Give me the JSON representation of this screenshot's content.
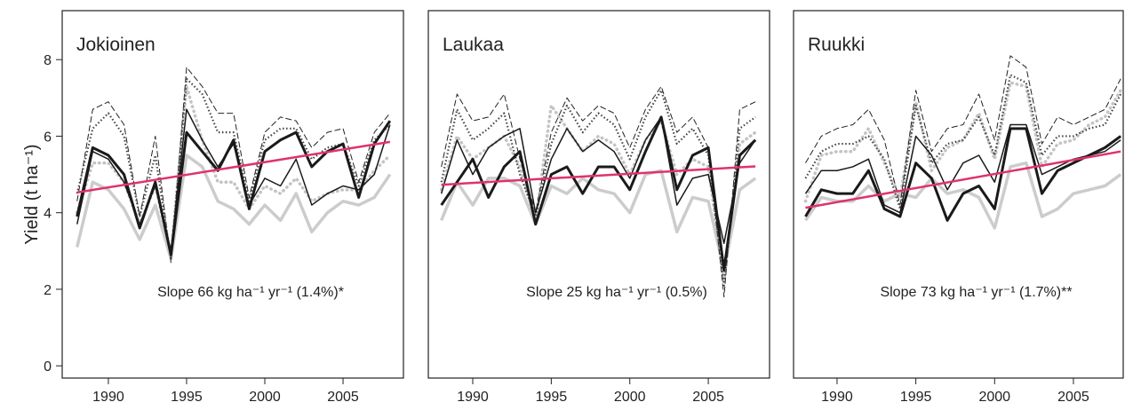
{
  "chart_data": [
    {
      "type": "line",
      "title": "Jokioinen",
      "ylabel": "Yield (t ha⁻¹)",
      "annotation": "Slope 66 kg ha⁻¹ yr⁻¹ (1.4%)*",
      "xlim": [
        1987.05,
        2008.86
      ],
      "ylim": [
        -0.32,
        9.28
      ],
      "xticks": [
        1990,
        1995,
        2000,
        2005
      ],
      "yticks": [
        0,
        2,
        4,
        6,
        8
      ],
      "x": [
        1988,
        1989,
        1990,
        1991,
        1992,
        1993,
        1994,
        1995,
        1996,
        1997,
        1998,
        1999,
        2000,
        2001,
        2002,
        2003,
        2004,
        2005,
        2006,
        2007,
        2008
      ],
      "series": [
        {
          "color": "#cccccc",
          "style": "thick",
          "values": [
            3.1,
            4.8,
            4.6,
            4.1,
            3.3,
            4.2,
            2.8,
            5.5,
            5.2,
            4.3,
            4.1,
            3.7,
            4.2,
            3.8,
            4.5,
            3.5,
            4.0,
            4.3,
            4.2,
            4.4,
            5.0
          ]
        },
        {
          "color": "#c4c4c4",
          "style": "dots",
          "values": [
            4.0,
            5.3,
            5.3,
            4.8,
            3.7,
            4.7,
            2.9,
            7.3,
            5.9,
            4.8,
            4.8,
            4.1,
            4.7,
            4.5,
            4.9,
            4.3,
            4.5,
            4.6,
            4.6,
            5.1,
            5.5
          ]
        },
        {
          "color": "#222222",
          "style": "dashed",
          "values": [
            4.3,
            6.7,
            6.9,
            6.3,
            3.9,
            6.0,
            2.7,
            7.8,
            7.3,
            6.6,
            6.6,
            4.4,
            6.1,
            6.5,
            6.4,
            5.7,
            6.1,
            6.2,
            4.8,
            6.1,
            6.6
          ]
        },
        {
          "color": "#444444",
          "style": "dotted",
          "values": [
            4.5,
            6.2,
            6.6,
            6.0,
            3.9,
            5.5,
            2.8,
            7.5,
            7.1,
            6.1,
            6.1,
            4.3,
            5.9,
            6.2,
            6.2,
            5.4,
            5.7,
            5.8,
            4.7,
            5.9,
            6.3
          ]
        },
        {
          "color": "#1a1a1a",
          "style": "thin",
          "values": [
            3.7,
            5.6,
            5.4,
            4.8,
            3.7,
            4.7,
            3.0,
            6.7,
            5.9,
            5.2,
            5.8,
            4.2,
            4.9,
            4.7,
            5.4,
            4.2,
            4.5,
            4.7,
            4.6,
            5.0,
            6.3
          ]
        },
        {
          "color": "#1a1a1a",
          "style": "bold",
          "values": [
            3.9,
            5.7,
            5.5,
            5.0,
            3.6,
            4.8,
            2.9,
            6.1,
            5.6,
            5.1,
            5.9,
            4.1,
            5.6,
            5.9,
            6.1,
            5.2,
            5.6,
            5.8,
            4.4,
            5.8,
            6.4
          ]
        }
      ],
      "trend": {
        "color": "#e0336a",
        "x": [
          1988,
          2008
        ],
        "values": [
          4.53,
          5.85
        ]
      }
    },
    {
      "type": "line",
      "title": "Laukaa",
      "annotation": "Slope 25 kg ha⁻¹ yr⁻¹ (0.5%)",
      "xlim": [
        1987.17,
        2008.9
      ],
      "ylim": [
        -0.32,
        9.28
      ],
      "xticks": [
        1990,
        1995,
        2000,
        2005
      ],
      "x": [
        1988,
        1989,
        1990,
        1991,
        1992,
        1993,
        1994,
        1995,
        1996,
        1997,
        1998,
        1999,
        2000,
        2001,
        2002,
        2003,
        2004,
        2005,
        2006,
        2007,
        2008
      ],
      "series": [
        {
          "color": "#cccccc",
          "style": "thick",
          "values": [
            3.8,
            4.8,
            4.2,
            4.9,
            4.9,
            4.7,
            3.7,
            4.7,
            4.5,
            4.9,
            4.6,
            4.5,
            4.0,
            5.0,
            5.1,
            3.5,
            4.4,
            4.3,
            2.5,
            4.6,
            4.9
          ]
        },
        {
          "color": "#c4c4c4",
          "style": "dots",
          "values": [
            4.6,
            6.0,
            5.4,
            5.7,
            6.0,
            5.2,
            3.8,
            6.8,
            6.2,
            5.6,
            6.0,
            5.8,
            5.0,
            5.9,
            6.4,
            5.0,
            5.4,
            5.2,
            2.2,
            5.8,
            6.1
          ]
        },
        {
          "color": "#222222",
          "style": "dashed",
          "values": [
            5.2,
            7.1,
            6.4,
            6.5,
            7.1,
            5.4,
            4.0,
            6.1,
            7.0,
            6.4,
            6.8,
            6.6,
            5.7,
            6.7,
            7.3,
            6.1,
            6.5,
            5.7,
            1.8,
            6.7,
            6.9
          ]
        },
        {
          "color": "#444444",
          "style": "dotted",
          "values": [
            4.8,
            6.7,
            5.9,
            6.2,
            6.6,
            5.0,
            3.9,
            5.8,
            6.8,
            6.1,
            6.6,
            6.3,
            5.4,
            6.5,
            7.2,
            5.8,
            6.2,
            5.5,
            2.1,
            6.2,
            6.5
          ]
        },
        {
          "color": "#1a1a1a",
          "style": "thin",
          "values": [
            4.5,
            5.9,
            5.0,
            5.7,
            6.0,
            6.2,
            4.0,
            5.4,
            6.2,
            5.6,
            5.9,
            5.6,
            4.9,
            5.9,
            6.5,
            4.2,
            4.9,
            5.0,
            3.2,
            5.3,
            5.9
          ]
        },
        {
          "color": "#1a1a1a",
          "style": "bold",
          "values": [
            4.2,
            4.8,
            5.4,
            4.4,
            5.2,
            5.6,
            3.7,
            5.0,
            5.2,
            4.5,
            5.2,
            5.2,
            4.6,
            5.6,
            6.5,
            4.6,
            5.5,
            5.7,
            2.5,
            5.5,
            5.9
          ]
        }
      ],
      "trend": {
        "color": "#e0336a",
        "x": [
          1988,
          2008
        ],
        "values": [
          4.73,
          5.21
        ]
      }
    },
    {
      "type": "line",
      "title": "Ruukki",
      "annotation": "Slope 73 kg ha⁻¹ yr⁻¹ (1.7%)**",
      "xlim": [
        1987.24,
        2008.16
      ],
      "ylim": [
        -0.32,
        9.28
      ],
      "xticks": [
        1990,
        1995,
        2000,
        2005
      ],
      "x": [
        1988,
        1989,
        1990,
        1991,
        1992,
        1993,
        1994,
        1995,
        1996,
        1997,
        1998,
        1999,
        2000,
        2001,
        2002,
        2003,
        2004,
        2005,
        2006,
        2007,
        2008
      ],
      "series": [
        {
          "color": "#cccccc",
          "style": "thick",
          "values": [
            3.8,
            4.4,
            4.3,
            4.3,
            4.7,
            4.3,
            4.5,
            4.4,
            4.9,
            4.5,
            4.6,
            4.4,
            3.6,
            5.2,
            5.3,
            3.9,
            4.1,
            4.5,
            4.6,
            4.7,
            5.0
          ]
        },
        {
          "color": "#c4c4c4",
          "style": "dots",
          "values": [
            4.3,
            5.5,
            5.6,
            5.6,
            6.2,
            5.3,
            4.4,
            6.9,
            5.1,
            5.7,
            5.9,
            6.6,
            5.4,
            7.4,
            7.3,
            5.2,
            5.8,
            5.9,
            6.3,
            6.5,
            7.2
          ]
        },
        {
          "color": "#222222",
          "style": "dashed",
          "values": [
            5.3,
            6.0,
            6.2,
            6.3,
            6.7,
            5.9,
            4.2,
            7.2,
            5.6,
            6.2,
            6.3,
            7.1,
            5.9,
            8.1,
            7.8,
            5.8,
            6.5,
            6.3,
            6.5,
            6.7,
            7.5
          ]
        },
        {
          "color": "#444444",
          "style": "dotted",
          "values": [
            4.9,
            5.6,
            5.8,
            5.8,
            6.0,
            5.4,
            4.1,
            6.8,
            5.3,
            5.8,
            5.9,
            6.5,
            5.5,
            7.6,
            7.4,
            5.5,
            6.0,
            6.0,
            6.2,
            6.3,
            7.1
          ]
        },
        {
          "color": "#1a1a1a",
          "style": "thin",
          "values": [
            4.5,
            5.1,
            5.1,
            5.2,
            5.4,
            4.2,
            4.0,
            6.0,
            5.5,
            4.6,
            5.3,
            5.5,
            4.8,
            6.3,
            6.3,
            5.0,
            5.2,
            5.4,
            5.5,
            5.6,
            5.9
          ]
        },
        {
          "color": "#1a1a1a",
          "style": "bold",
          "values": [
            3.9,
            4.6,
            4.5,
            4.5,
            5.1,
            4.1,
            3.9,
            5.3,
            4.9,
            3.8,
            4.5,
            4.7,
            4.1,
            6.2,
            6.2,
            4.5,
            5.1,
            5.3,
            5.5,
            5.7,
            6.0
          ]
        }
      ],
      "trend": {
        "color": "#e0336a",
        "x": [
          1988,
          2008
        ],
        "values": [
          4.13,
          5.6
        ]
      }
    }
  ]
}
